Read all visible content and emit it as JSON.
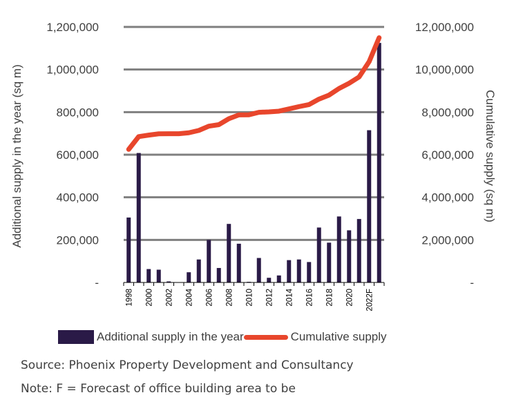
{
  "chart_data": {
    "type": "bar+line",
    "categories": [
      "1998",
      "1999",
      "2000",
      "2001",
      "2002",
      "2003",
      "2004",
      "2005",
      "2006",
      "2007",
      "2008",
      "2009",
      "2010",
      "2011",
      "2012",
      "2013",
      "2014",
      "2015",
      "2016",
      "2017",
      "2018",
      "2019",
      "2020",
      "2021",
      "2022F",
      "2023F"
    ],
    "x_tick_labels": [
      "1998",
      "2000",
      "2002",
      "2004",
      "2006",
      "2008",
      "2010",
      "2012",
      "2014",
      "2016",
      "2018",
      "2020",
      "2022F"
    ],
    "series": [
      {
        "name": "Additional supply in the year",
        "type": "bar",
        "axis": "left",
        "color": "#2a1a47",
        "values": [
          305000,
          608000,
          63000,
          60000,
          5000,
          0,
          48000,
          108000,
          200000,
          68000,
          275000,
          182000,
          3000,
          115000,
          22000,
          33000,
          105000,
          108000,
          96000,
          258000,
          187000,
          310000,
          245000,
          298000,
          715000,
          1125000
        ]
      },
      {
        "name": "Cumulative supply",
        "type": "line",
        "axis": "right",
        "color": "#e8462c",
        "values": [
          6250000,
          6850000,
          6920000,
          6980000,
          6985000,
          6985000,
          7030000,
          7140000,
          7340000,
          7410000,
          7690000,
          7870000,
          7873000,
          7990000,
          8012000,
          8045000,
          8150000,
          8258000,
          8354000,
          8612000,
          8799000,
          9109000,
          9354000,
          9652000,
          10367000,
          11492000
        ]
      }
    ],
    "y_left": {
      "label": "Additional supply in the year (sq m)",
      "ticks": [
        "-",
        "200,000",
        "400,000",
        "600,000",
        "800,000",
        "1,000,000",
        "1,200,000"
      ],
      "range": [
        0,
        1200000
      ]
    },
    "y_right": {
      "label": "Cumulative  supply (sq m)",
      "ticks": [
        "-",
        "2,000,000",
        "4,000,000",
        "6,000,000",
        "8,000,000",
        "10,000,000",
        "12,000,000"
      ],
      "range": [
        0,
        12000000
      ]
    },
    "grid": true,
    "legend_position": "bottom"
  },
  "legend": {
    "bar_label": "Additional supply in the year",
    "line_label": "Cumulative supply"
  },
  "notes": {
    "source": "Source: Phoenix Property Development and Consultancy",
    "note": "Note: F = Forecast of office building area to be"
  }
}
